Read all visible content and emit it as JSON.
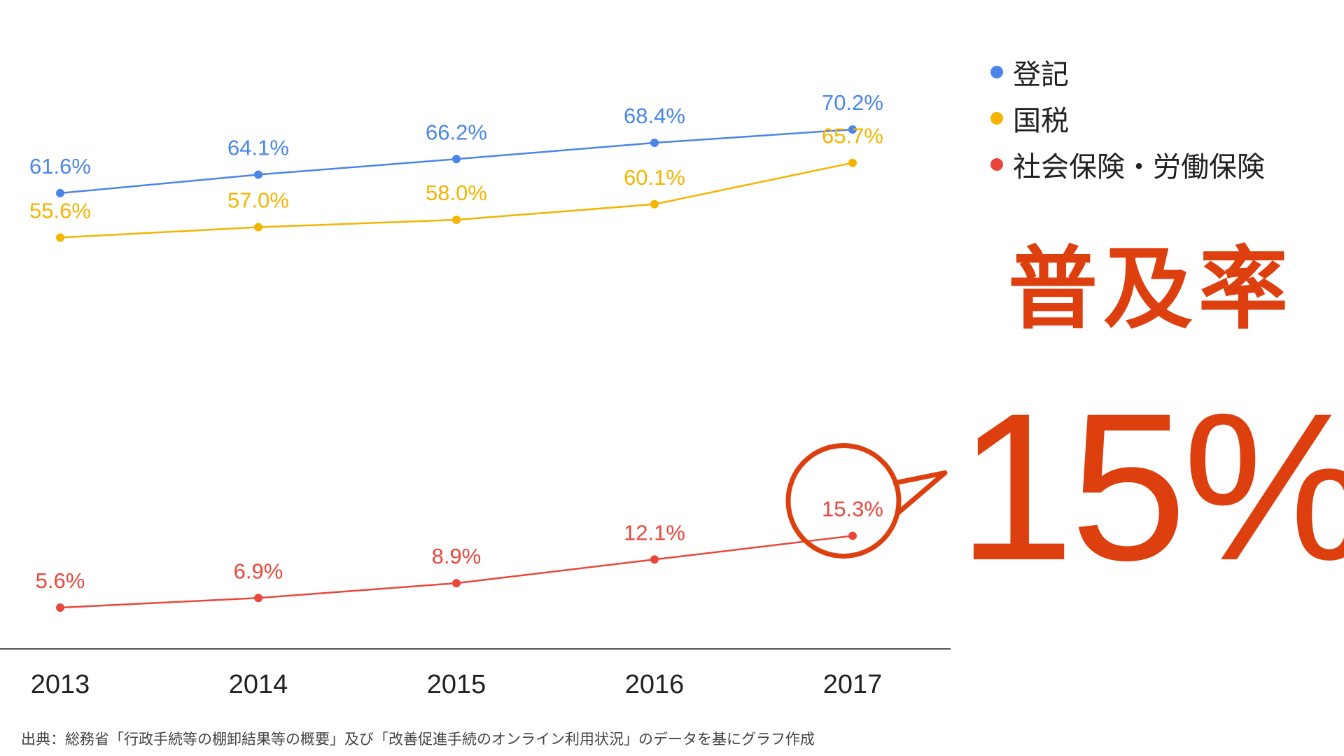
{
  "chart_data": {
    "type": "line",
    "categories": [
      "2013",
      "2014",
      "2015",
      "2016",
      "2017"
    ],
    "series": [
      {
        "name": "登記",
        "color": "#4a86e8",
        "values": [
          61.6,
          64.1,
          66.2,
          68.4,
          70.2
        ],
        "labels": [
          "61.6%",
          "64.1%",
          "66.2%",
          "68.4%",
          "70.2%"
        ]
      },
      {
        "name": "国税",
        "color": "#f4b400",
        "values": [
          55.6,
          57.0,
          58.0,
          60.1,
          65.7
        ],
        "labels": [
          "55.6%",
          "57.0%",
          "58.0%",
          "60.1%",
          "65.7%"
        ]
      },
      {
        "name": "社会保険・労働保険",
        "color": "#e8473c",
        "values": [
          5.6,
          6.9,
          8.9,
          12.1,
          15.3
        ],
        "labels": [
          "5.6%",
          "6.9%",
          "8.9%",
          "12.1%",
          "15.3%"
        ]
      }
    ],
    "legend_position": "top-right",
    "grid": false,
    "highlight": {
      "series": "社会保険・労働保険",
      "category": "2017",
      "color": "#dd3f0e"
    }
  },
  "headline": "普及率",
  "big_number": "15%",
  "accent_color": "#dd3f0e",
  "source_note": "出典：総務省「行政手続等の棚卸結果等の概要」及び「改善促進手続のオンライン利用状況」のデータを基にグラフ作成"
}
